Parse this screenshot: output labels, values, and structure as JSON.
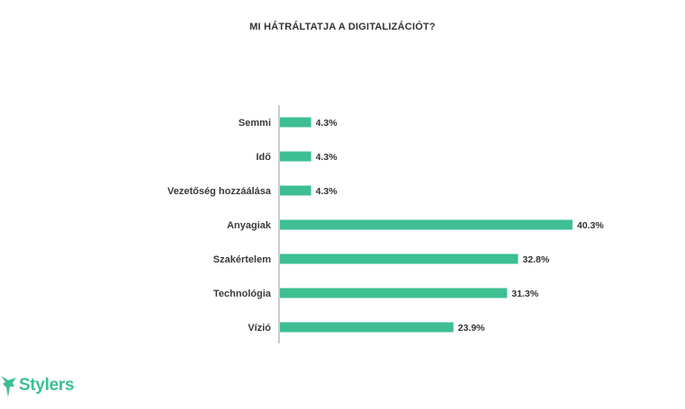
{
  "chart_data": {
    "type": "bar",
    "orientation": "horizontal",
    "title": "MI HÁTRÁLTATJA A DIGITALIZÁCIÓT?",
    "categories": [
      "Semmi",
      "Idő",
      "Vezetőség hozzáálása",
      "Anyagiak",
      "Szakértelem",
      "Technológia",
      "Vízió"
    ],
    "values": [
      4.3,
      4.3,
      4.3,
      40.3,
      32.8,
      31.3,
      23.9
    ],
    "value_labels": [
      "4.3%",
      "4.3%",
      "4.3%",
      "40.3%",
      "32.8%",
      "31.3%",
      "23.9%"
    ],
    "xlim": [
      0,
      40.3
    ],
    "grid": false,
    "bar_color": "#3dbf92"
  },
  "logo": {
    "text": "Stylers",
    "color": "#3dbf92"
  },
  "colors": {
    "axis": "#999999",
    "text": "#333333"
  }
}
